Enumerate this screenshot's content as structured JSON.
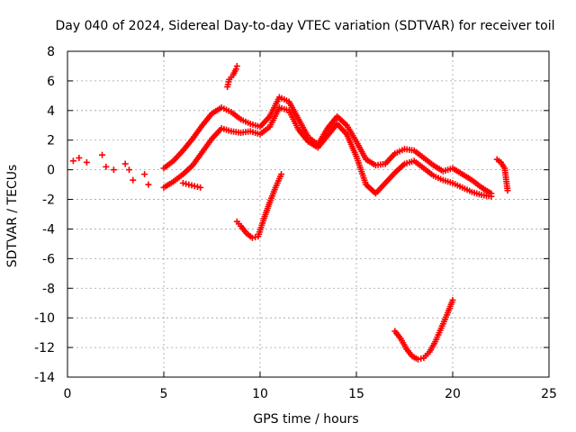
{
  "chart_data": {
    "type": "scatter",
    "title": "Day 040 of 2024, Sidereal Day-to-day VTEC variation (SDTVAR) for receiver toil",
    "xlabel": "GPS time / hours",
    "ylabel": "SDTVAR / TECUs",
    "xlim": [
      0,
      25
    ],
    "ylim": [
      -14,
      8
    ],
    "xticks": [
      0,
      5,
      10,
      15,
      20,
      25
    ],
    "yticks": [
      -14,
      -12,
      -10,
      -8,
      -6,
      -4,
      -2,
      0,
      2,
      4,
      6,
      8
    ],
    "grid": true,
    "marker": "+",
    "series": [
      {
        "name": "main-trace-upper",
        "x": [
          5.0,
          5.5,
          6.0,
          6.5,
          7.0,
          7.5,
          8.0,
          8.5,
          9.0,
          9.5,
          10.0,
          10.5,
          11.0,
          11.5,
          12.0,
          12.5,
          13.0,
          13.5,
          14.0,
          14.5,
          15.0,
          15.5,
          16.0,
          16.5,
          17.0,
          17.5,
          18.0,
          18.5,
          19.0,
          19.5,
          20.0,
          20.5,
          21.0,
          21.5,
          22.0
        ],
        "y": [
          0.1,
          0.6,
          1.3,
          2.1,
          3.0,
          3.8,
          4.2,
          3.9,
          3.4,
          3.1,
          2.9,
          3.6,
          4.9,
          4.6,
          3.4,
          2.2,
          1.7,
          2.8,
          3.6,
          3.0,
          1.9,
          0.7,
          0.3,
          0.4,
          1.1,
          1.4,
          1.3,
          0.8,
          0.3,
          -0.1,
          0.1,
          -0.3,
          -0.7,
          -1.2,
          -1.6
        ]
      },
      {
        "name": "main-trace-lower",
        "x": [
          5.0,
          5.5,
          6.0,
          6.5,
          7.0,
          7.5,
          8.0,
          8.5,
          9.0,
          9.5,
          10.0,
          10.5,
          11.0,
          11.5,
          12.0,
          12.5,
          13.0,
          13.5,
          14.0,
          14.5,
          15.0,
          15.5,
          16.0,
          16.5,
          17.0,
          17.5,
          18.0,
          18.5,
          19.0,
          19.5,
          20.0,
          20.5,
          21.0,
          21.5,
          22.0
        ],
        "y": [
          -1.2,
          -0.8,
          -0.3,
          0.3,
          1.2,
          2.1,
          2.8,
          2.6,
          2.5,
          2.6,
          2.4,
          2.9,
          4.2,
          4.0,
          2.7,
          1.9,
          1.5,
          2.3,
          3.1,
          2.4,
          0.9,
          -1.0,
          -1.6,
          -0.9,
          -0.2,
          0.4,
          0.6,
          0.1,
          -0.4,
          -0.7,
          -0.9,
          -1.2,
          -1.5,
          -1.7,
          -1.8
        ]
      },
      {
        "name": "isolated-early-segments",
        "x": [
          0.3,
          0.6,
          1.0,
          1.8,
          2.0,
          2.4,
          3.0,
          3.2,
          3.4,
          4.0,
          4.2
        ],
        "y": [
          0.6,
          0.8,
          0.5,
          1.0,
          0.2,
          0.0,
          0.4,
          0.0,
          -0.7,
          -0.3,
          -1.0
        ]
      },
      {
        "name": "spike-near-9h",
        "x": [
          8.3,
          8.4,
          8.6,
          8.75,
          8.8
        ],
        "y": [
          5.6,
          6.1,
          6.4,
          6.8,
          7.0
        ]
      },
      {
        "name": "segment-6-7h-low",
        "x": [
          6.0,
          6.3,
          6.6,
          6.9
        ],
        "y": [
          -0.9,
          -1.0,
          -1.1,
          -1.2
        ]
      },
      {
        "name": "dip-around-10h",
        "x": [
          8.8,
          9.0,
          9.3,
          9.6,
          9.9,
          10.2,
          10.5,
          10.8,
          11.1
        ],
        "y": [
          -3.5,
          -3.8,
          -4.3,
          -4.6,
          -4.5,
          -3.3,
          -2.2,
          -1.2,
          -0.3
        ]
      },
      {
        "name": "deep-dip-17-20h",
        "x": [
          17.0,
          17.3,
          17.6,
          17.9,
          18.2,
          18.5,
          18.8,
          19.1,
          19.4,
          19.7,
          20.0
        ],
        "y": [
          -10.9,
          -11.4,
          -12.1,
          -12.6,
          -12.8,
          -12.7,
          -12.3,
          -11.6,
          -10.7,
          -9.8,
          -8.8
        ]
      },
      {
        "name": "late-segment-22-23h",
        "x": [
          22.3,
          22.5,
          22.7,
          22.85
        ],
        "y": [
          0.7,
          0.5,
          0.1,
          -1.4
        ]
      }
    ]
  }
}
